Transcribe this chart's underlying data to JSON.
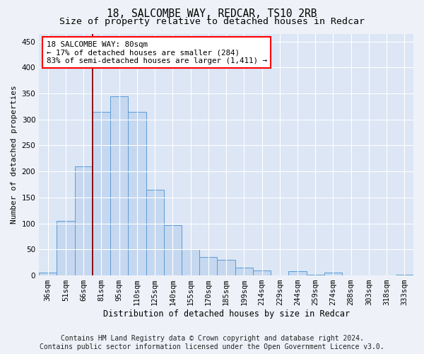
{
  "title1": "18, SALCOMBE WAY, REDCAR, TS10 2RB",
  "title2": "Size of property relative to detached houses in Redcar",
  "xlabel": "Distribution of detached houses by size in Redcar",
  "ylabel": "Number of detached properties",
  "categories": [
    "36sqm",
    "51sqm",
    "66sqm",
    "81sqm",
    "95sqm",
    "110sqm",
    "125sqm",
    "140sqm",
    "155sqm",
    "170sqm",
    "185sqm",
    "199sqm",
    "214sqm",
    "229sqm",
    "244sqm",
    "259sqm",
    "274sqm",
    "288sqm",
    "303sqm",
    "318sqm",
    "333sqm"
  ],
  "values": [
    5,
    105,
    210,
    315,
    345,
    315,
    165,
    97,
    50,
    35,
    30,
    15,
    10,
    0,
    8,
    1,
    5,
    0,
    0,
    0,
    1
  ],
  "bar_color": "#c5d8f0",
  "bar_edge_color": "#5b9bd5",
  "red_line_x": 2.5,
  "ylim": [
    0,
    465
  ],
  "yticks": [
    0,
    50,
    100,
    150,
    200,
    250,
    300,
    350,
    400,
    450
  ],
  "annotation_text_line1": "18 SALCOMBE WAY: 80sqm",
  "annotation_text_line2": "← 17% of detached houses are smaller (284)",
  "annotation_text_line3": "83% of semi-detached houses are larger (1,411) →",
  "footer1": "Contains HM Land Registry data © Crown copyright and database right 2024.",
  "footer2": "Contains public sector information licensed under the Open Government Licence v3.0.",
  "bg_color": "#eef2f8",
  "plot_bg_color": "#dce6f5",
  "grid_color": "#ffffff",
  "title1_fontsize": 10.5,
  "title2_fontsize": 9.5,
  "tick_fontsize": 7.5,
  "ylabel_fontsize": 8,
  "xlabel_fontsize": 8.5,
  "footer_fontsize": 7,
  "annot_fontsize": 7.8
}
